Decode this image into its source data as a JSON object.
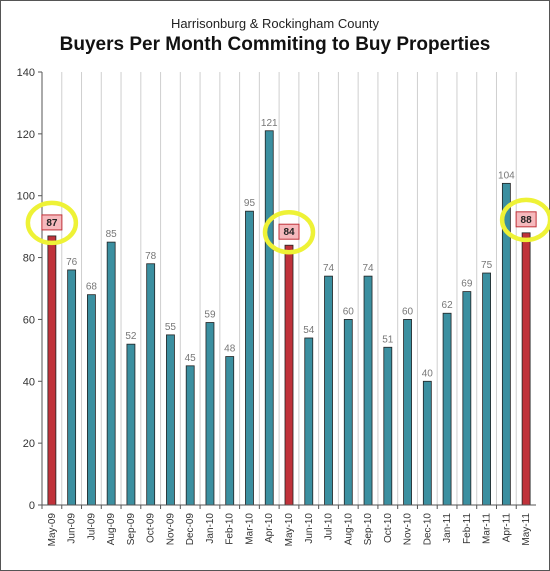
{
  "chart_data": {
    "type": "bar",
    "subtitle": "Harrisonburg & Rockingham County",
    "title": "Buyers Per Month Commiting to Buy Properties",
    "categories": [
      "May-09",
      "Jun-09",
      "Jul-09",
      "Aug-09",
      "Sep-09",
      "Oct-09",
      "Nov-09",
      "Dec-09",
      "Jan-10",
      "Feb-10",
      "Mar-10",
      "Apr-10",
      "May-10",
      "Jun-10",
      "Jul-10",
      "Aug-10",
      "Sep-10",
      "Oct-10",
      "Nov-10",
      "Dec-10",
      "Jan-11",
      "Feb-11",
      "Mar-11",
      "Apr-11",
      "May-11"
    ],
    "values": [
      87,
      76,
      68,
      85,
      52,
      78,
      55,
      45,
      59,
      48,
      95,
      121,
      84,
      54,
      74,
      60,
      74,
      51,
      60,
      40,
      62,
      69,
      75,
      104,
      88
    ],
    "value_labels": [
      "87",
      "76",
      "68",
      "85",
      "52",
      "78",
      "55",
      "45",
      "59",
      "48",
      "95",
      "121",
      "84",
      "54",
      "74",
      "60",
      "74",
      "51",
      "60",
      "40",
      "62",
      "69",
      "75",
      "104",
      "88"
    ],
    "highlighted_indices": [
      0,
      12,
      24
    ],
    "ylim": [
      0,
      140
    ],
    "yticks": [
      0,
      20,
      40,
      60,
      80,
      100,
      120,
      140
    ],
    "ytick_labels": [
      "0",
      "20",
      "40",
      "60",
      "80",
      "100",
      "120",
      "140"
    ],
    "xlabel": "",
    "ylabel": "",
    "grid": "vertical",
    "colors": {
      "bar": "#3b8fa0",
      "highlight_bar": "#c0323a",
      "highlight_label_fill": "#f6b9bd",
      "highlight_label_border": "#c0323a",
      "circle": "#eef236",
      "gridline": "#cfcfcf",
      "axis": "#555555"
    }
  }
}
